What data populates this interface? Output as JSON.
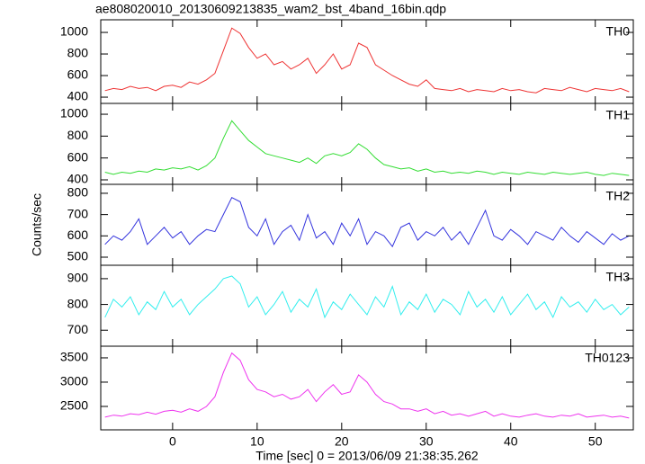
{
  "chart_data": [
    {
      "type": "line",
      "title": "ae808020010_20130609213835_wam2_bst_4band_16bin.qdp",
      "x": [
        -8,
        -7,
        -6,
        -5,
        -4,
        -3,
        -2,
        -1,
        0,
        1,
        2,
        3,
        4,
        5,
        6,
        7,
        8,
        9,
        10,
        11,
        12,
        13,
        14,
        15,
        16,
        17,
        18,
        19,
        20,
        21,
        22,
        23,
        24,
        25,
        26,
        27,
        28,
        29,
        30,
        31,
        32,
        33,
        34,
        35,
        36,
        37,
        38,
        39,
        40,
        41,
        42,
        43,
        44,
        45,
        46,
        47,
        48,
        49,
        50,
        51,
        52,
        53,
        54
      ],
      "series": [
        {
          "name": "TH0",
          "color": "#ee3333",
          "values": [
            460,
            480,
            470,
            500,
            480,
            490,
            460,
            500,
            510,
            490,
            540,
            520,
            560,
            620,
            830,
            1040,
            990,
            860,
            760,
            800,
            700,
            730,
            660,
            700,
            760,
            620,
            700,
            800,
            660,
            700,
            900,
            860,
            700,
            650,
            600,
            560,
            520,
            500,
            560,
            480,
            470,
            460,
            480,
            450,
            470,
            460,
            450,
            480,
            460,
            470,
            450,
            440,
            480,
            470,
            460,
            490,
            470,
            450,
            480,
            470,
            460,
            480,
            450
          ]
        }
      ],
      "xlim": [
        -8.5,
        54.5
      ],
      "ylim": [
        342,
        1117
      ],
      "yticks": [
        400,
        600,
        800,
        1000
      ]
    },
    {
      "type": "line",
      "x": [
        -8,
        -7,
        -6,
        -5,
        -4,
        -3,
        -2,
        -1,
        0,
        1,
        2,
        3,
        4,
        5,
        6,
        7,
        8,
        9,
        10,
        11,
        12,
        13,
        14,
        15,
        16,
        17,
        18,
        19,
        20,
        21,
        22,
        23,
        24,
        25,
        26,
        27,
        28,
        29,
        30,
        31,
        32,
        33,
        34,
        35,
        36,
        37,
        38,
        39,
        40,
        41,
        42,
        43,
        44,
        45,
        46,
        47,
        48,
        49,
        50,
        51,
        52,
        53,
        54
      ],
      "series": [
        {
          "name": "TH1",
          "color": "#33dd33",
          "values": [
            470,
            450,
            470,
            460,
            480,
            470,
            500,
            490,
            510,
            500,
            520,
            490,
            530,
            600,
            780,
            940,
            850,
            760,
            700,
            640,
            620,
            600,
            580,
            560,
            600,
            550,
            620,
            640,
            620,
            650,
            730,
            680,
            600,
            540,
            520,
            500,
            510,
            480,
            500,
            470,
            480,
            460,
            470,
            460,
            480,
            470,
            450,
            470,
            460,
            450,
            470,
            460,
            450,
            470,
            460,
            450,
            460,
            470,
            450,
            440,
            460,
            450,
            440
          ]
        }
      ],
      "xlim": [
        -8.5,
        54.5
      ],
      "ylim": [
        359,
        1099
      ],
      "yticks": [
        400,
        600,
        800,
        1000
      ]
    },
    {
      "type": "line",
      "ylabel": "Counts/sec",
      "x": [
        -8,
        -7,
        -6,
        -5,
        -4,
        -3,
        -2,
        -1,
        0,
        1,
        2,
        3,
        4,
        5,
        6,
        7,
        8,
        9,
        10,
        11,
        12,
        13,
        14,
        15,
        16,
        17,
        18,
        19,
        20,
        21,
        22,
        23,
        24,
        25,
        26,
        27,
        28,
        29,
        30,
        31,
        32,
        33,
        34,
        35,
        36,
        37,
        38,
        39,
        40,
        41,
        42,
        43,
        44,
        45,
        46,
        47,
        48,
        49,
        50,
        51,
        52,
        53,
        54
      ],
      "series": [
        {
          "name": "TH2",
          "color": "#3333dd",
          "values": [
            560,
            600,
            580,
            620,
            680,
            560,
            600,
            640,
            590,
            620,
            560,
            600,
            630,
            620,
            700,
            780,
            760,
            640,
            600,
            680,
            560,
            620,
            650,
            580,
            700,
            590,
            620,
            560,
            660,
            600,
            680,
            560,
            620,
            600,
            550,
            640,
            660,
            580,
            620,
            600,
            640,
            580,
            620,
            560,
            640,
            720,
            600,
            580,
            630,
            600,
            560,
            620,
            600,
            580,
            640,
            600,
            570,
            620,
            590,
            560,
            610,
            580,
            600
          ]
        }
      ],
      "xlim": [
        -8.5,
        54.5
      ],
      "ylim": [
        462,
        842
      ],
      "yticks": [
        500,
        600,
        700,
        800
      ]
    },
    {
      "type": "line",
      "x": [
        -8,
        -7,
        -6,
        -5,
        -4,
        -3,
        -2,
        -1,
        0,
        1,
        2,
        3,
        4,
        5,
        6,
        7,
        8,
        9,
        10,
        11,
        12,
        13,
        14,
        15,
        16,
        17,
        18,
        19,
        20,
        21,
        22,
        23,
        24,
        25,
        26,
        27,
        28,
        29,
        30,
        31,
        32,
        33,
        34,
        35,
        36,
        37,
        38,
        39,
        40,
        41,
        42,
        43,
        44,
        45,
        46,
        47,
        48,
        49,
        50,
        51,
        52,
        53,
        54
      ],
      "series": [
        {
          "name": "TH3",
          "color": "#33eeee",
          "values": [
            750,
            820,
            790,
            830,
            760,
            810,
            780,
            850,
            790,
            820,
            760,
            800,
            830,
            860,
            900,
            910,
            880,
            790,
            830,
            760,
            800,
            850,
            770,
            820,
            790,
            860,
            750,
            810,
            780,
            840,
            800,
            760,
            830,
            790,
            870,
            760,
            810,
            780,
            840,
            770,
            820,
            800,
            760,
            850,
            790,
            820,
            770,
            830,
            760,
            800,
            840,
            780,
            810,
            750,
            830,
            790,
            810,
            770,
            820,
            780,
            800,
            760,
            790
          ]
        }
      ],
      "xlim": [
        -8.5,
        54.5
      ],
      "ylim": [
        638,
        952
      ],
      "yticks": [
        700,
        800,
        900
      ]
    },
    {
      "type": "line",
      "xlabel": "Time [sec] 0 = 2013/06/09 21:38:35.262",
      "x": [
        -8,
        -7,
        -6,
        -5,
        -4,
        -3,
        -2,
        -1,
        0,
        1,
        2,
        3,
        4,
        5,
        6,
        7,
        8,
        9,
        10,
        11,
        12,
        13,
        14,
        15,
        16,
        17,
        18,
        19,
        20,
        21,
        22,
        23,
        24,
        25,
        26,
        27,
        28,
        29,
        30,
        31,
        32,
        33,
        34,
        35,
        36,
        37,
        38,
        39,
        40,
        41,
        42,
        43,
        44,
        45,
        46,
        47,
        48,
        49,
        50,
        51,
        52,
        53,
        54
      ],
      "series": [
        {
          "name": "TH0123",
          "color": "#ee33ee",
          "values": [
            2280,
            2320,
            2300,
            2350,
            2330,
            2380,
            2340,
            2400,
            2420,
            2380,
            2450,
            2400,
            2500,
            2700,
            3200,
            3600,
            3450,
            3050,
            2850,
            2800,
            2700,
            2750,
            2650,
            2700,
            2850,
            2600,
            2800,
            2950,
            2750,
            2800,
            3150,
            3000,
            2750,
            2600,
            2550,
            2450,
            2450,
            2400,
            2450,
            2350,
            2400,
            2320,
            2350,
            2300,
            2350,
            2400,
            2300,
            2350,
            2300,
            2280,
            2320,
            2350,
            2300,
            2280,
            2320,
            2300,
            2350,
            2280,
            2300,
            2320,
            2280,
            2300,
            2260
          ]
        }
      ],
      "xlim": [
        -8.5,
        54.5
      ],
      "ylim": [
        2018,
        3740
      ],
      "yticks": [
        2500,
        3000,
        3500
      ],
      "xticks": [
        0,
        10,
        20,
        30,
        40,
        50
      ]
    }
  ]
}
